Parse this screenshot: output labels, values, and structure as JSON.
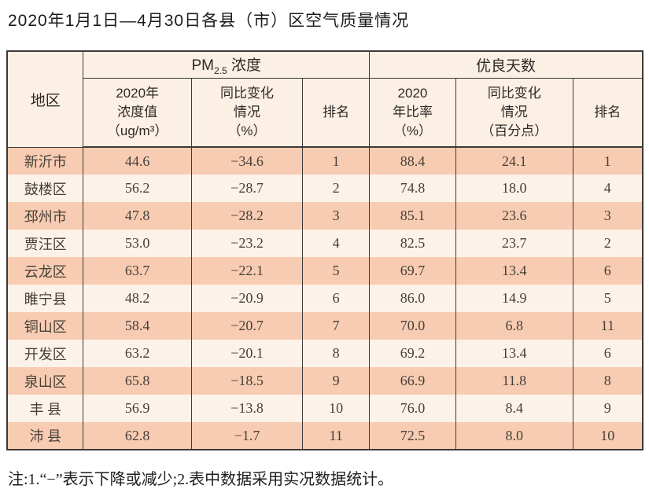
{
  "page": {
    "title": "2020年1月1日—4月30日各县（市）区空气质量情况",
    "note": "注:1.“−”表示下降或减少;2.表中数据采用实况数据统计。"
  },
  "colors": {
    "row-salmon": "#f8ccb2",
    "row-cream": "#fdf2e9",
    "header-bg": "#fcefe3",
    "border": "#3d3936",
    "text-data": "#46403a"
  },
  "table": {
    "region_header": "地区",
    "pm_group": {
      "prefix": "PM",
      "subscript": "2.5",
      "suffix": " 浓度"
    },
    "good_group": "优良天数",
    "sub_headers": {
      "pm_value": "2020年\n浓度值\n（ug/m³）",
      "pm_change": "同比变化\n情况\n（%）",
      "pm_rank": "排名",
      "good_ratio": "2020\n年比率\n（%）",
      "good_change": "同比变化\n情况\n（百分点）",
      "good_rank": "排名"
    },
    "rows": [
      {
        "region": "新沂市",
        "pm_value": "44.6",
        "pm_change": "−34.6",
        "pm_rank": "1",
        "good_ratio": "88.4",
        "good_change": "24.1",
        "good_rank": "1"
      },
      {
        "region": "鼓楼区",
        "pm_value": "56.2",
        "pm_change": "−28.7",
        "pm_rank": "2",
        "good_ratio": "74.8",
        "good_change": "18.0",
        "good_rank": "4"
      },
      {
        "region": "邳州市",
        "pm_value": "47.8",
        "pm_change": "−28.2",
        "pm_rank": "3",
        "good_ratio": "85.1",
        "good_change": "23.6",
        "good_rank": "3"
      },
      {
        "region": "贾汪区",
        "pm_value": "53.0",
        "pm_change": "−23.2",
        "pm_rank": "4",
        "good_ratio": "82.5",
        "good_change": "23.7",
        "good_rank": "2"
      },
      {
        "region": "云龙区",
        "pm_value": "63.7",
        "pm_change": "−22.1",
        "pm_rank": "5",
        "good_ratio": "69.7",
        "good_change": "13.4",
        "good_rank": "6"
      },
      {
        "region": "睢宁县",
        "pm_value": "48.2",
        "pm_change": "−20.9",
        "pm_rank": "6",
        "good_ratio": "86.0",
        "good_change": "14.9",
        "good_rank": "5"
      },
      {
        "region": "铜山区",
        "pm_value": "58.4",
        "pm_change": "−20.7",
        "pm_rank": "7",
        "good_ratio": "70.0",
        "good_change": "6.8",
        "good_rank": "11"
      },
      {
        "region": "开发区",
        "pm_value": "63.2",
        "pm_change": "−20.1",
        "pm_rank": "8",
        "good_ratio": "69.2",
        "good_change": "13.4",
        "good_rank": "6"
      },
      {
        "region": "泉山区",
        "pm_value": "65.8",
        "pm_change": "−18.5",
        "pm_rank": "9",
        "good_ratio": "66.9",
        "good_change": "11.8",
        "good_rank": "8"
      },
      {
        "region": "丰 县",
        "pm_value": "56.9",
        "pm_change": "−13.8",
        "pm_rank": "10",
        "good_ratio": "76.0",
        "good_change": "8.4",
        "good_rank": "9"
      },
      {
        "region": "沛 县",
        "pm_value": "62.8",
        "pm_change": "−1.7",
        "pm_rank": "11",
        "good_ratio": "72.5",
        "good_change": "8.0",
        "good_rank": "10"
      }
    ]
  }
}
